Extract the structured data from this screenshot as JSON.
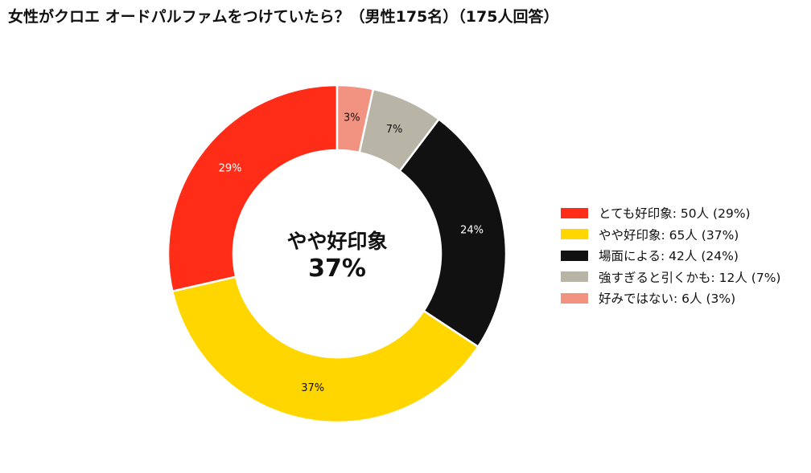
{
  "chart_data": {
    "type": "donut",
    "title": "女性がクロエ オードパルファムをつけていたら？（男性175名）（175人回答）",
    "unit": "人",
    "total": 175,
    "center_label": {
      "category": "やや好印象",
      "percent": "37%"
    },
    "slices": [
      {
        "label": "とても好印象",
        "value": 50,
        "percent": 29,
        "percent_label": "29%",
        "color": "#ff2d18",
        "label_color": "#ffffff",
        "legend_text": "とても好印象:  50人 (29%)"
      },
      {
        "label": "やや好印象",
        "value": 65,
        "percent": 37,
        "percent_label": "37%",
        "color": "#ffd600",
        "label_color": "#111111",
        "legend_text": "やや好印象:  65人 (37%)"
      },
      {
        "label": "場面による",
        "value": 42,
        "percent": 24,
        "percent_label": "24%",
        "color": "#111111",
        "label_color": "#ffffff",
        "legend_text": "場面による:  42人 (24%)"
      },
      {
        "label": "強すぎると引くかも",
        "value": 12,
        "percent": 7,
        "percent_label": "7%",
        "color": "#b8b4a6",
        "label_color": "#111111",
        "legend_text": "強すぎると引くかも:  12人 (7%)"
      },
      {
        "label": "好みではない",
        "value": 6,
        "percent": 3,
        "percent_label": "3%",
        "color": "#f29382",
        "label_color": "#111111",
        "legend_text": "好みではない:  6人 (3%)"
      }
    ],
    "legend_position": "right",
    "direction": "counterclockwise",
    "start_angle": "top"
  }
}
